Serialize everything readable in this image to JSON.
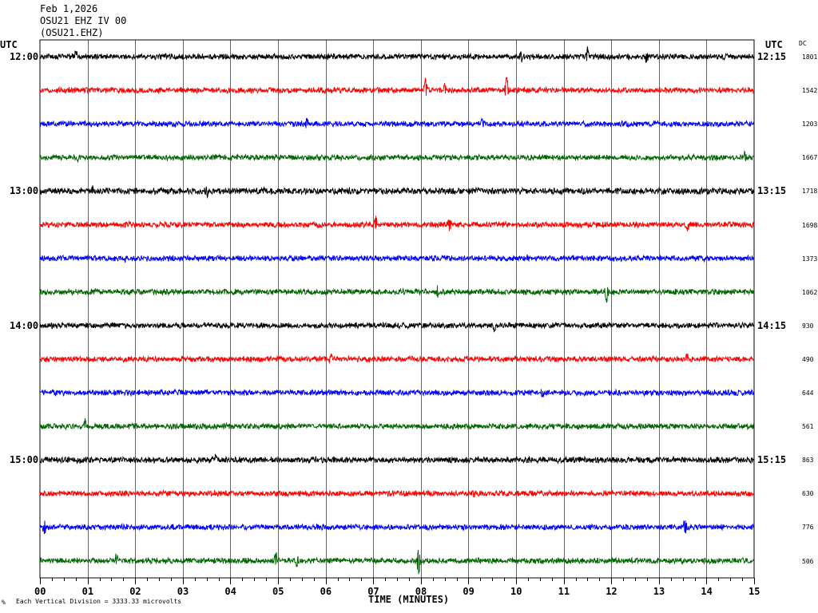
{
  "header": {
    "date": "Feb 1,2026",
    "station": "OSU21 EHZ IV 00",
    "channel": "(OSU21.EHZ)"
  },
  "left_utc_label": "UTC",
  "right_utc_label": "UTC",
  "dc_label": "DC",
  "footer": {
    "scale_note": "Each Vertical Division = 3333.33 microvolts",
    "corner_mark": "%"
  },
  "chart_data": {
    "type": "line",
    "title": "",
    "xlabel": "TIME (MINUTES)",
    "ylabel": "",
    "xlim": [
      0,
      15
    ],
    "x_ticks": [
      "00",
      "01",
      "02",
      "03",
      "04",
      "05",
      "06",
      "07",
      "08",
      "09",
      "10",
      "11",
      "12",
      "13",
      "14",
      "15"
    ],
    "grid": true,
    "trace_colors": [
      "#000000",
      "#ff0000",
      "#0000ff",
      "#006400"
    ],
    "left_time_labels": [
      {
        "row": 0,
        "text": "12:00"
      },
      {
        "row": 4,
        "text": "13:00"
      },
      {
        "row": 8,
        "text": "14:00"
      },
      {
        "row": 12,
        "text": "15:00"
      }
    ],
    "right_time_labels": [
      {
        "row": 0,
        "text": "12:15"
      },
      {
        "row": 4,
        "text": "13:15"
      },
      {
        "row": 8,
        "text": "14:15"
      },
      {
        "row": 12,
        "text": "15:15"
      }
    ],
    "traces": [
      {
        "row": 0,
        "dc": "1801",
        "noise": 1.0,
        "spikes": [
          [
            0.75,
            -8
          ],
          [
            11.5,
            -10
          ],
          [
            12.75,
            8
          ],
          [
            10.1,
            7
          ]
        ]
      },
      {
        "row": 1,
        "dc": "1542",
        "noise": 1.0,
        "spikes": [
          [
            8.1,
            -15
          ],
          [
            9.8,
            -17
          ],
          [
            8.5,
            -6
          ]
        ]
      },
      {
        "row": 2,
        "dc": "1203",
        "noise": 1.0,
        "spikes": [
          [
            5.6,
            -7
          ],
          [
            9.3,
            -6
          ]
        ]
      },
      {
        "row": 3,
        "dc": "1667",
        "noise": 1.0,
        "spikes": [
          [
            0.8,
            4
          ],
          [
            14.8,
            -7
          ]
        ]
      },
      {
        "row": 4,
        "dc": "1718",
        "noise": 1.2,
        "spikes": [
          [
            1.1,
            -5
          ],
          [
            3.5,
            5
          ]
        ]
      },
      {
        "row": 5,
        "dc": "1698",
        "noise": 1.0,
        "spikes": [
          [
            7.05,
            -10
          ],
          [
            8.6,
            -10
          ],
          [
            13.6,
            6
          ]
        ]
      },
      {
        "row": 6,
        "dc": "1373",
        "noise": 1.0,
        "spikes": [
          [
            1.8,
            5
          ],
          [
            10.25,
            -5
          ]
        ]
      },
      {
        "row": 7,
        "dc": "1062",
        "noise": 1.0,
        "spikes": [
          [
            11.9,
            12
          ],
          [
            8.35,
            8
          ]
        ]
      },
      {
        "row": 8,
        "dc": "930",
        "noise": 1.0,
        "spikes": [
          [
            9.55,
            6
          ]
        ]
      },
      {
        "row": 9,
        "dc": "490",
        "noise": 1.0,
        "spikes": [
          [
            13.6,
            -6
          ],
          [
            6.1,
            -5
          ]
        ]
      },
      {
        "row": 10,
        "dc": "644",
        "noise": 1.0,
        "spikes": [
          [
            10.55,
            7
          ]
        ]
      },
      {
        "row": 11,
        "dc": "561",
        "noise": 1.0,
        "spikes": [
          [
            0.95,
            -9
          ]
        ]
      },
      {
        "row": 12,
        "dc": "863",
        "noise": 1.1,
        "spikes": [
          [
            3.7,
            -5
          ]
        ]
      },
      {
        "row": 13,
        "dc": "630",
        "noise": 1.0,
        "spikes": [
          [
            9.1,
            5
          ]
        ]
      },
      {
        "row": 14,
        "dc": "776",
        "noise": 1.0,
        "spikes": [
          [
            0.1,
            12
          ],
          [
            13.55,
            -10
          ]
        ]
      },
      {
        "row": 15,
        "dc": "506",
        "noise": 1.0,
        "spikes": [
          [
            7.95,
            20
          ],
          [
            4.95,
            -12
          ],
          [
            5.4,
            9
          ],
          [
            1.6,
            -8
          ]
        ]
      }
    ]
  }
}
